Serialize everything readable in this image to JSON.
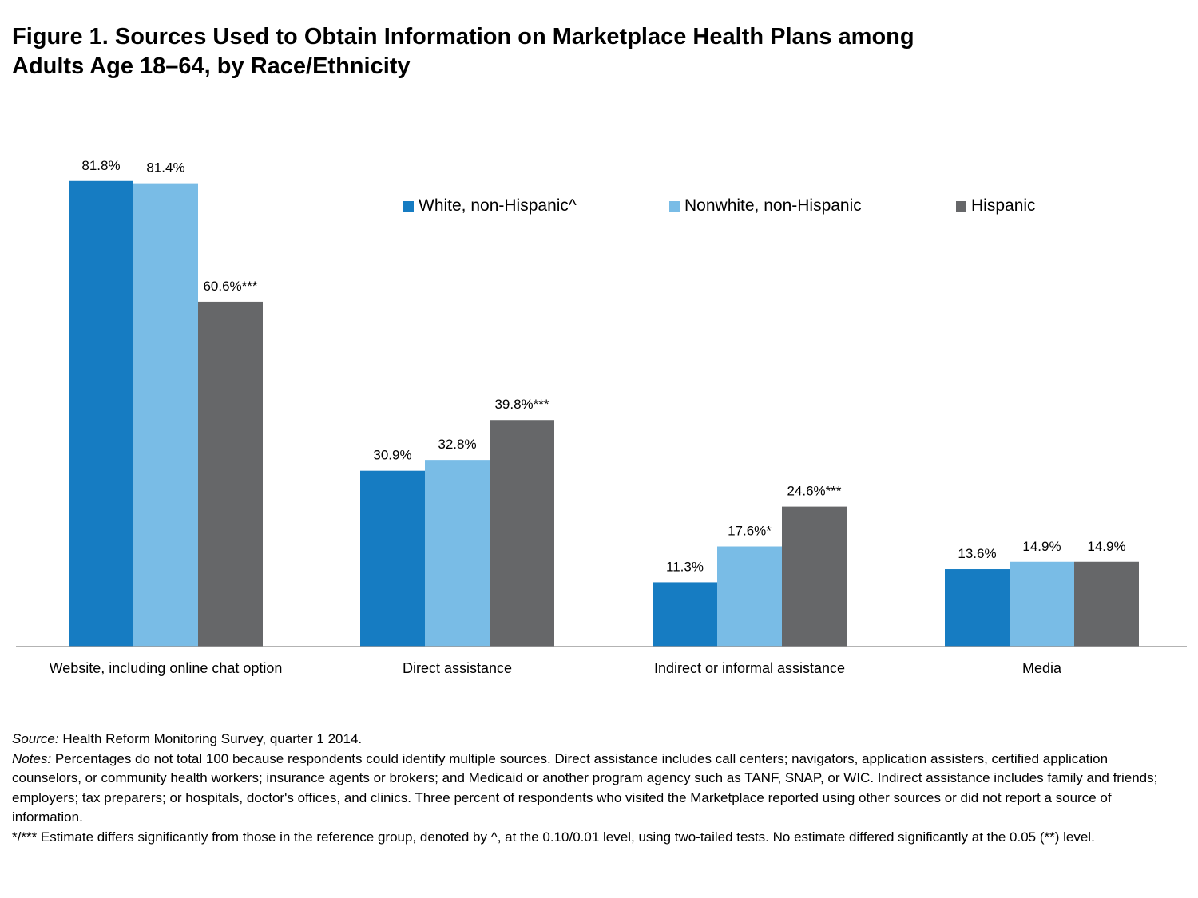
{
  "title": {
    "line1": "Figure 1. Sources Used to Obtain Information on Marketplace Health Plans among",
    "line2": "Adults Age 18–64, by Race/Ethnicity"
  },
  "legend": [
    {
      "label": "White, non-Hispanic^",
      "color": "#167CC2"
    },
    {
      "label": "Nonwhite, non-Hispanic",
      "color": "#79BCE6"
    },
    {
      "label": "Hispanic",
      "color": "#666769"
    }
  ],
  "chart_data": {
    "type": "bar",
    "categories": [
      "Website, including online chat option",
      "Direct assistance",
      "Indirect or informal assistance",
      "Media"
    ],
    "series": [
      {
        "name": "White, non-Hispanic^",
        "color": "#167CC2",
        "values": [
          81.8,
          30.9,
          11.3,
          13.6
        ],
        "labels": [
          "81.8%",
          "30.9%",
          "11.3%",
          "13.6%"
        ]
      },
      {
        "name": "Nonwhite, non-Hispanic",
        "color": "#79BCE6",
        "values": [
          81.4,
          32.8,
          17.6,
          14.9
        ],
        "labels": [
          "81.4%",
          "32.8%",
          "17.6%*",
          "14.9%"
        ]
      },
      {
        "name": "Hispanic",
        "color": "#666769",
        "values": [
          60.6,
          39.8,
          24.6,
          14.9
        ],
        "labels": [
          "60.6%***",
          "39.8%***",
          "24.6%***",
          "14.9%"
        ]
      }
    ],
    "ylim": [
      0,
      85
    ],
    "grid": false,
    "legend_position": "top-right"
  },
  "footer": {
    "source_label": "Source:",
    "source_text": " Health Reform Monitoring Survey, quarter 1 2014.",
    "notes_label": "Notes:",
    "notes_text": " Percentages do not total 100 because respondents could identify multiple sources. Direct assistance includes call centers; navigators, application assisters, certified application counselors, or community health workers; insurance agents or brokers; and Medicaid or another program agency such as TANF, SNAP, or WIC. Indirect assistance includes family and friends; employers; tax preparers; or hospitals, doctor's offices, and clinics. Three percent of respondents who visited the Marketplace reported using other sources or did not report a source of information.",
    "significance": "*/*** Estimate differs significantly from those in the reference group, denoted by ^, at the 0.10/0.01 level, using two-tailed tests. No estimate differed significantly at the 0.05 (**) level."
  }
}
